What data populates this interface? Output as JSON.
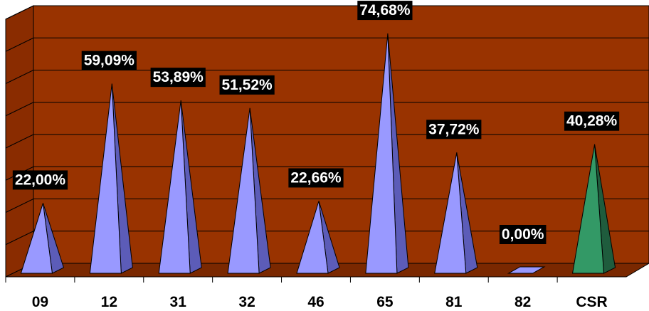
{
  "chart_data": {
    "type": "bar",
    "bar_shape": "pyramid-3d",
    "title": "",
    "xlabel": "",
    "ylabel": "",
    "categories": [
      "09",
      "12",
      "31",
      "32",
      "46",
      "65",
      "81",
      "82",
      "CSR"
    ],
    "values": [
      22.0,
      59.09,
      53.89,
      51.52,
      22.66,
      74.68,
      37.72,
      0.0,
      40.28
    ],
    "value_labels": [
      "22,00%",
      "59,09%",
      "53,89%",
      "51,52%",
      "22,66%",
      "74,68%",
      "37,72%",
      "0,00%",
      "40,28%"
    ],
    "ylim": [
      0,
      80
    ],
    "grid": true,
    "legend": "none",
    "colors": {
      "plot_background": "#993300",
      "side_wall": "#8a2c00",
      "floor": "#7a2800",
      "gridline": "#000000",
      "bar_default": "#9999ff",
      "bar_default_shade": "#5c5cb8",
      "bar_highlight": "#339966",
      "bar_highlight_shade": "#1f5c3d",
      "label_background": "#000000",
      "label_text": "#ffffff"
    },
    "highlight_categories": [
      "CSR"
    ]
  }
}
